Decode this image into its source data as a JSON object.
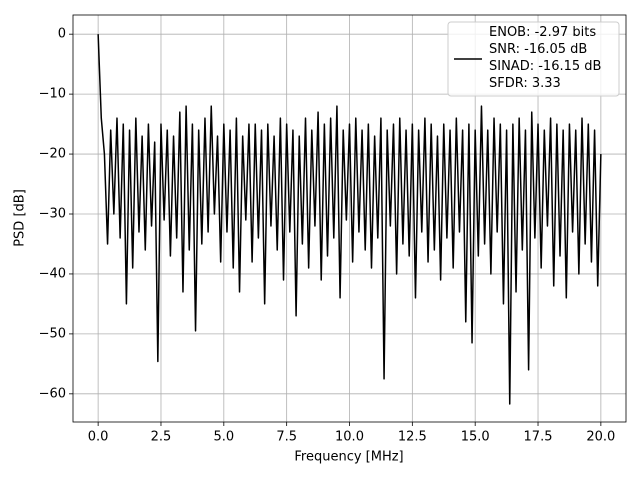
{
  "chart_data": {
    "type": "line",
    "xlabel": "Frequency [MHz]",
    "ylabel": "PSD [dB]",
    "xlim": [
      -1.0,
      21.0
    ],
    "ylim": [
      -64.7,
      3.2
    ],
    "xticks": [
      {
        "value": 0,
        "label": "0.0"
      },
      2.5,
      {
        "value": 5,
        "label": "5.0"
      },
      7.5,
      {
        "value": 10,
        "label": "10.0"
      },
      12.5,
      {
        "value": 15,
        "label": "15.0"
      },
      17.5,
      {
        "value": 20,
        "label": "20.0"
      }
    ],
    "yticks": [
      0,
      {
        "value": -10,
        "label": "−10"
      },
      {
        "value": -20,
        "label": "−20"
      },
      {
        "value": -30,
        "label": "−30"
      },
      {
        "value": -40,
        "label": "−40"
      },
      {
        "value": -50,
        "label": "−50"
      },
      {
        "value": -60,
        "label": "−60"
      }
    ],
    "grid": true,
    "legend": "upper right",
    "x": [
      0,
      0.125,
      0.25,
      0.375,
      0.5,
      0.625,
      0.75,
      0.875,
      1,
      1.125,
      1.25,
      1.375,
      1.5,
      1.625,
      1.75,
      1.875,
      2,
      2.125,
      2.25,
      2.375,
      2.5,
      2.625,
      2.75,
      2.875,
      3,
      3.125,
      3.25,
      3.375,
      3.5,
      3.625,
      3.75,
      3.875,
      4,
      4.125,
      4.25,
      4.375,
      4.5,
      4.625,
      4.75,
      4.875,
      5,
      5.125,
      5.25,
      5.375,
      5.5,
      5.625,
      5.75,
      5.875,
      6,
      6.125,
      6.25,
      6.375,
      6.5,
      6.625,
      6.75,
      6.875,
      7,
      7.125,
      7.25,
      7.375,
      7.5,
      7.625,
      7.75,
      7.875,
      8,
      8.125,
      8.25,
      8.375,
      8.5,
      8.625,
      8.75,
      8.875,
      9,
      9.125,
      9.25,
      9.375,
      9.5,
      9.625,
      9.75,
      9.875,
      10,
      10.125,
      10.25,
      10.375,
      10.5,
      10.625,
      10.75,
      10.875,
      11,
      11.125,
      11.25,
      11.375,
      11.5,
      11.625,
      11.75,
      11.875,
      12,
      12.125,
      12.25,
      12.375,
      12.5,
      12.625,
      12.75,
      12.875,
      13,
      13.125,
      13.25,
      13.375,
      13.5,
      13.625,
      13.75,
      13.875,
      14,
      14.125,
      14.25,
      14.375,
      14.5,
      14.625,
      14.75,
      14.875,
      15,
      15.125,
      15.25,
      15.375,
      15.5,
      15.625,
      15.75,
      15.875,
      16,
      16.125,
      16.25,
      16.375,
      16.5,
      16.625,
      16.75,
      16.875,
      17,
      17.125,
      17.25,
      17.375,
      17.5,
      17.625,
      17.75,
      17.875,
      18,
      18.125,
      18.25,
      18.375,
      18.5,
      18.625,
      18.75,
      18.875,
      19,
      19.125,
      19.25,
      19.375,
      19.5,
      19.625,
      19.75,
      19.875,
      20
    ],
    "series": [
      {
        "name": "ENOB: -2.97 bits\nSNR: -16.05 dB\nSINAD: -16.15 dB\nSFDR: 3.33",
        "color": "#000000",
        "values": [
          0,
          -14,
          -20,
          -35,
          -16,
          -30,
          -14,
          -34,
          -15,
          -45,
          -16,
          -39,
          -14,
          -33,
          -17,
          -36,
          -15,
          -32,
          -18,
          -54.6,
          -15,
          -31,
          -16,
          -37,
          -17,
          -34,
          -13,
          -43,
          -12,
          -36,
          -15,
          -49.5,
          -16,
          -35,
          -14,
          -33,
          -12,
          -30,
          -17,
          -38,
          -15,
          -33,
          -16,
          -39,
          -14,
          -43,
          -17,
          -31,
          -15,
          -38,
          -15,
          -34,
          -16,
          -45,
          -15,
          -32,
          -17,
          -36,
          -14,
          -41,
          -15,
          -33,
          -16,
          -47,
          -17,
          -35,
          -14,
          -39,
          -16,
          -32,
          -13,
          -41,
          -15,
          -37,
          -14,
          -34,
          -12,
          -44,
          -16,
          -31,
          -15,
          -38,
          -14,
          -33,
          -16,
          -36,
          -15,
          -39,
          -17,
          -34,
          -14,
          -57.5,
          -16,
          -32,
          -15,
          -40,
          -14,
          -35,
          -16,
          -37,
          -15,
          -44,
          -16,
          -33,
          -14,
          -38,
          -15,
          -36,
          -17,
          -41,
          -15,
          -34,
          -16,
          -39,
          -14,
          -33,
          -16,
          -48,
          -15,
          -51.5,
          -16,
          -37,
          -12,
          -35,
          -16,
          -40,
          -14,
          -33,
          -15,
          -45,
          -16,
          -61.7,
          -15,
          -43,
          -14,
          -36,
          -16,
          -56,
          -13,
          -34,
          -15,
          -39,
          -16,
          -32,
          -14,
          -42,
          -15,
          -37,
          -16,
          -44,
          -15,
          -33,
          -16,
          -40,
          -14,
          -35,
          -15,
          -38,
          -16,
          -42,
          -20
        ]
      }
    ]
  }
}
